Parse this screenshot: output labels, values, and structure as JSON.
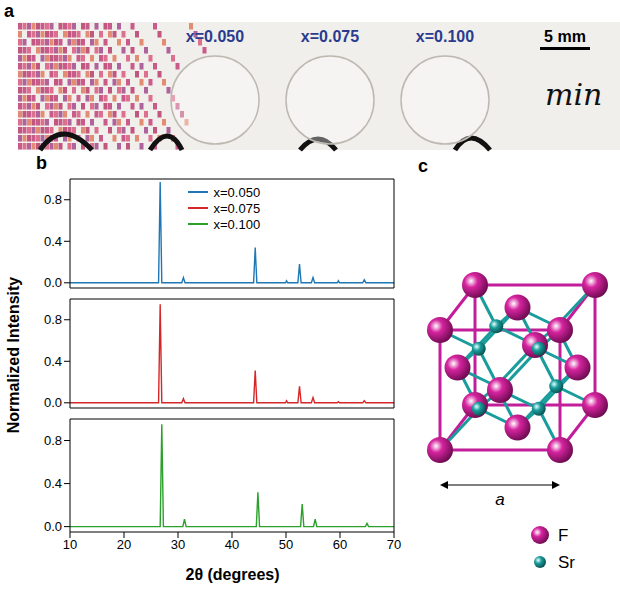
{
  "panel_letters": [
    "a",
    "b",
    "c"
  ],
  "photo": {
    "sample_labels": [
      "x=0.050",
      "x=0.075",
      "x=0.100"
    ],
    "scale_bar": "5 mm",
    "handwriting": "min"
  },
  "chart_data": {
    "type": "line",
    "x_label": "2θ (degrees)",
    "y_label": "Normalized Intensity",
    "xlim": [
      10,
      70
    ],
    "xticks": [
      10,
      20,
      30,
      40,
      50,
      60,
      70
    ],
    "ylim": [
      -0.05,
      1.0
    ],
    "yticks": [
      {
        "value": 0,
        "label": "0.0"
      },
      {
        "value": 0.4,
        "label": "0.4"
      },
      {
        "value": 0.8,
        "label": "0.8"
      }
    ],
    "legend": "upper center",
    "series": [
      {
        "name": "x=0.050",
        "color": "#1f77b4",
        "x": [
          10,
          26.4,
          26.7,
          27.0,
          30.7,
          31.0,
          31.3,
          44.0,
          44.3,
          44.6,
          49.9,
          50.1,
          50.3,
          52.2,
          52.5,
          52.8,
          54.7,
          55.0,
          55.3,
          59.5,
          59.7,
          59.9,
          64.2,
          64.5,
          64.8,
          70
        ],
        "values": [
          0,
          0,
          0.97,
          0,
          0,
          0.05,
          0,
          0,
          0.34,
          0,
          0,
          0.02,
          0,
          0,
          0.18,
          0,
          0,
          0.05,
          0,
          0,
          0.02,
          0,
          0,
          0.03,
          0,
          0
        ]
      },
      {
        "name": "x=0.075",
        "color": "#d62728",
        "x": [
          10,
          26.4,
          26.7,
          27.0,
          30.7,
          31.0,
          31.3,
          44.0,
          44.3,
          44.6,
          49.9,
          50.1,
          50.3,
          52.2,
          52.5,
          52.8,
          54.7,
          55.0,
          55.3,
          59.5,
          59.7,
          59.9,
          64.2,
          64.5,
          64.8,
          70
        ],
        "values": [
          0,
          0,
          0.95,
          0,
          0,
          0.04,
          0,
          0,
          0.31,
          0,
          0,
          0.02,
          0,
          0,
          0.16,
          0,
          0,
          0.05,
          0,
          0,
          0.01,
          0,
          0,
          0.02,
          0,
          0
        ]
      },
      {
        "name": "x=0.100",
        "color": "#2ca02c",
        "x": [
          10,
          26.7,
          27.0,
          27.3,
          30.9,
          31.2,
          31.5,
          44.5,
          44.8,
          45.1,
          52.7,
          53.0,
          53.3,
          55.1,
          55.4,
          55.7,
          64.7,
          65.0,
          65.3,
          70
        ],
        "values": [
          0,
          0,
          0.95,
          0,
          0,
          0.07,
          0,
          0,
          0.32,
          0,
          0,
          0.21,
          0,
          0,
          0.07,
          0,
          0,
          0.03,
          0,
          0
        ]
      }
    ]
  },
  "structure": {
    "lattice_label": "a",
    "legend": [
      {
        "label": "F",
        "color": "#d6249f"
      },
      {
        "label": "Sr",
        "color": "#1a9c9c"
      }
    ]
  }
}
